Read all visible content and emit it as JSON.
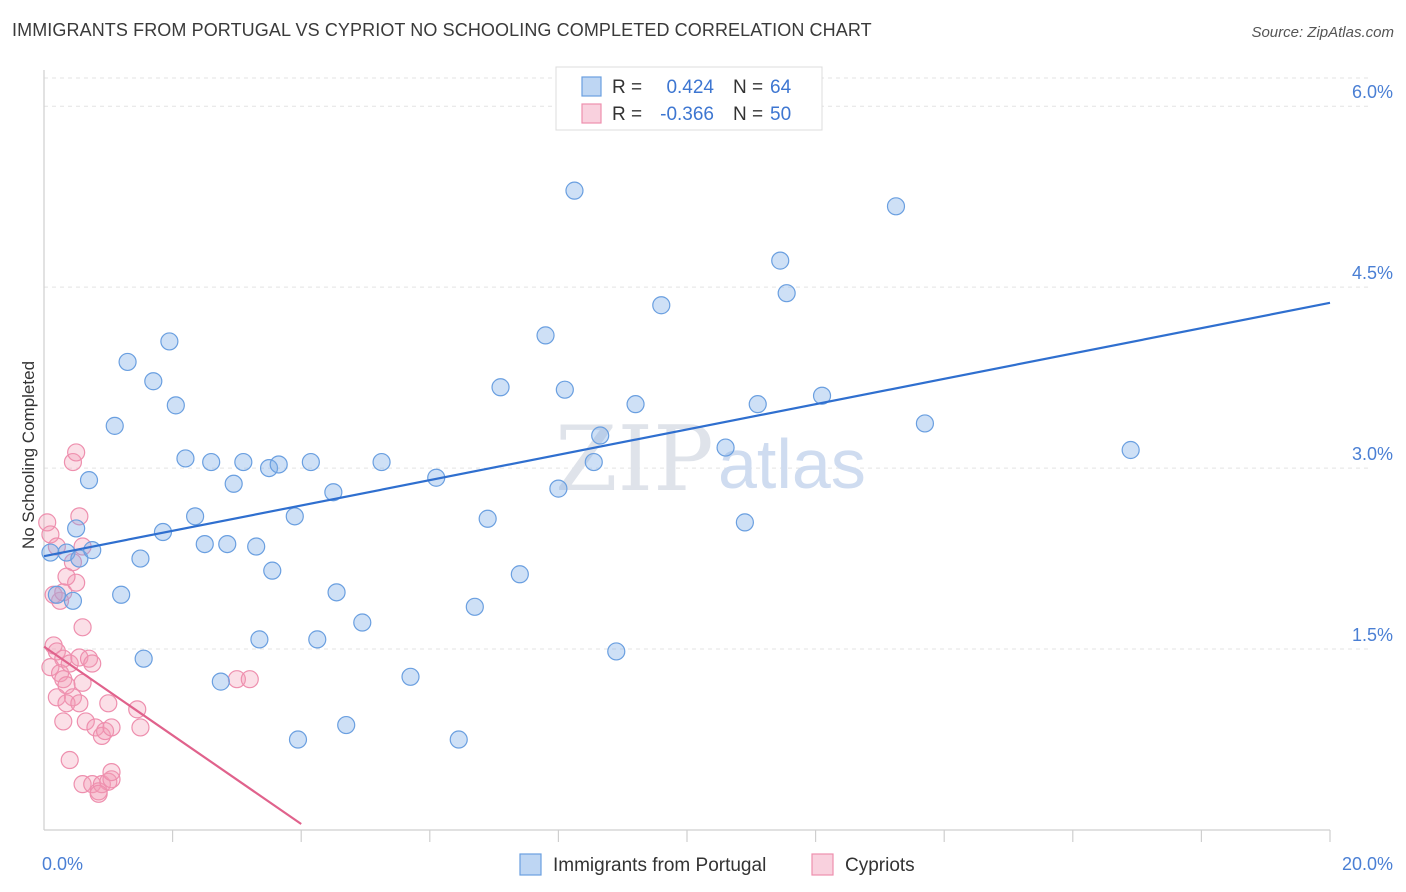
{
  "title": "IMMIGRANTS FROM PORTUGAL VS CYPRIOT NO SCHOOLING COMPLETED CORRELATION CHART",
  "source": "Source: ZipAtlas.com",
  "watermark": {
    "zip": "ZIP",
    "atlas": "atlas"
  },
  "colors": {
    "blue": "#7eaee8",
    "blue_line": "#2f6fcf",
    "pink": "#f29ab5",
    "pink_line": "#e0628c",
    "tick_text": "#4a7fd4"
  },
  "chart_data": {
    "type": "scatter",
    "ylabel": "No Schooling Completed",
    "xlim": [
      0,
      20
    ],
    "ylim": [
      0,
      6.3
    ],
    "x_tick_labels": [
      {
        "value": 0,
        "label": "0.0%"
      },
      {
        "value": 20,
        "label": "20.0%"
      }
    ],
    "x_minor_ticks": [
      2,
      4,
      6,
      8,
      10,
      12,
      14,
      16,
      18,
      20
    ],
    "y_ticks": [
      {
        "value": 1.5,
        "label": "1.5%"
      },
      {
        "value": 3.0,
        "label": "3.0%"
      },
      {
        "value": 4.5,
        "label": "4.5%"
      },
      {
        "value": 6.0,
        "label": "6.0%"
      }
    ],
    "legend": [
      {
        "key": "R = ",
        "r": "0.424",
        "nkey": "N = ",
        "n": "64",
        "color": "blue"
      },
      {
        "key": "R = ",
        "r": "-0.366",
        "nkey": "N = ",
        "n": "50",
        "color": "pink"
      }
    ],
    "series": [
      {
        "name": "Immigrants from Portugal",
        "color": "blue",
        "trend": [
          [
            0,
            2.27
          ],
          [
            20,
            4.37
          ]
        ],
        "points": [
          [
            0.1,
            2.3
          ],
          [
            0.35,
            2.3
          ],
          [
            0.55,
            2.25
          ],
          [
            0.75,
            2.32
          ],
          [
            0.2,
            1.95
          ],
          [
            0.45,
            1.9
          ],
          [
            1.2,
            1.95
          ],
          [
            0.7,
            2.9
          ],
          [
            0.5,
            2.5
          ],
          [
            1.1,
            3.35
          ],
          [
            1.3,
            3.88
          ],
          [
            1.7,
            3.72
          ],
          [
            1.95,
            4.05
          ],
          [
            2.05,
            3.52
          ],
          [
            2.2,
            3.08
          ],
          [
            2.35,
            2.6
          ],
          [
            1.85,
            2.47
          ],
          [
            1.5,
            2.25
          ],
          [
            2.5,
            2.37
          ],
          [
            2.6,
            3.05
          ],
          [
            2.85,
            2.37
          ],
          [
            2.95,
            2.87
          ],
          [
            3.1,
            3.05
          ],
          [
            3.3,
            2.35
          ],
          [
            3.5,
            3.0
          ],
          [
            3.65,
            3.03
          ],
          [
            3.9,
            2.6
          ],
          [
            4.15,
            3.05
          ],
          [
            4.5,
            2.8
          ],
          [
            3.55,
            2.15
          ],
          [
            3.35,
            1.58
          ],
          [
            3.95,
            0.75
          ],
          [
            4.25,
            1.58
          ],
          [
            4.55,
            1.97
          ],
          [
            4.7,
            0.87
          ],
          [
            4.95,
            1.72
          ],
          [
            5.25,
            3.05
          ],
          [
            5.7,
            1.27
          ],
          [
            6.1,
            2.92
          ],
          [
            6.45,
            0.75
          ],
          [
            6.7,
            1.85
          ],
          [
            6.9,
            2.58
          ],
          [
            7.1,
            3.67
          ],
          [
            7.4,
            2.12
          ],
          [
            7.8,
            4.1
          ],
          [
            8.0,
            2.83
          ],
          [
            8.1,
            3.65
          ],
          [
            8.25,
            5.3
          ],
          [
            8.55,
            3.05
          ],
          [
            8.65,
            3.27
          ],
          [
            8.9,
            1.48
          ],
          [
            9.2,
            3.53
          ],
          [
            9.6,
            4.35
          ],
          [
            10.6,
            3.17
          ],
          [
            10.9,
            2.55
          ],
          [
            11.1,
            3.53
          ],
          [
            11.45,
            4.72
          ],
          [
            11.55,
            4.45
          ],
          [
            12.1,
            3.6
          ],
          [
            13.25,
            5.17
          ],
          [
            13.7,
            3.37
          ],
          [
            16.9,
            3.15
          ],
          [
            1.55,
            1.42
          ],
          [
            2.75,
            1.23
          ]
        ]
      },
      {
        "name": "Cypriots",
        "color": "pink",
        "trend": [
          [
            0,
            1.52
          ],
          [
            4.0,
            0.05
          ]
        ],
        "points": [
          [
            0.05,
            2.55
          ],
          [
            0.1,
            2.45
          ],
          [
            0.2,
            2.35
          ],
          [
            0.25,
            1.9
          ],
          [
            0.15,
            1.95
          ],
          [
            0.3,
            1.97
          ],
          [
            0.55,
            2.6
          ],
          [
            0.5,
            2.05
          ],
          [
            0.45,
            2.22
          ],
          [
            0.6,
            2.35
          ],
          [
            0.35,
            2.1
          ],
          [
            0.45,
            3.05
          ],
          [
            0.5,
            3.13
          ],
          [
            0.15,
            1.53
          ],
          [
            0.2,
            1.48
          ],
          [
            0.3,
            1.42
          ],
          [
            0.1,
            1.35
          ],
          [
            0.25,
            1.3
          ],
          [
            0.4,
            1.38
          ],
          [
            0.55,
            1.43
          ],
          [
            0.6,
            1.68
          ],
          [
            0.3,
            1.25
          ],
          [
            0.35,
            1.2
          ],
          [
            0.45,
            1.1
          ],
          [
            0.2,
            1.1
          ],
          [
            0.35,
            1.05
          ],
          [
            0.55,
            1.05
          ],
          [
            0.7,
            1.42
          ],
          [
            0.75,
            1.38
          ],
          [
            0.6,
            1.22
          ],
          [
            0.3,
            0.9
          ],
          [
            0.65,
            0.9
          ],
          [
            0.8,
            0.85
          ],
          [
            0.9,
            0.78
          ],
          [
            0.95,
            0.82
          ],
          [
            1.0,
            1.05
          ],
          [
            1.05,
            0.85
          ],
          [
            1.45,
            1.0
          ],
          [
            1.5,
            0.85
          ],
          [
            0.4,
            0.58
          ],
          [
            0.6,
            0.38
          ],
          [
            0.75,
            0.38
          ],
          [
            0.85,
            0.32
          ],
          [
            0.9,
            0.38
          ],
          [
            1.0,
            0.4
          ],
          [
            1.05,
            0.42
          ],
          [
            1.05,
            0.48
          ],
          [
            0.85,
            0.3
          ],
          [
            3.0,
            1.25
          ],
          [
            3.2,
            1.25
          ]
        ]
      }
    ]
  },
  "bottom_legend": [
    {
      "label": "Immigrants from Portugal",
      "color": "blue"
    },
    {
      "label": "Cypriots",
      "color": "pink"
    }
  ]
}
